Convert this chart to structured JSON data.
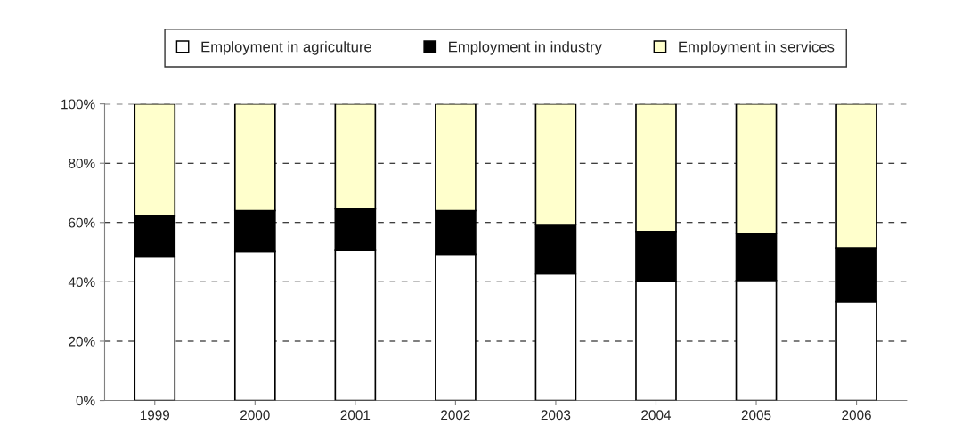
{
  "chart_data": {
    "type": "bar",
    "stacked": true,
    "categories": [
      "1999",
      "2000",
      "2001",
      "2002",
      "2003",
      "2004",
      "2005",
      "2006"
    ],
    "series": [
      {
        "name": "Employment in agriculture",
        "color": "#ffffff",
        "values": [
          48.4,
          50.2,
          50.6,
          49.3,
          42.7,
          40.1,
          40.5,
          33.3
        ]
      },
      {
        "name": "Employment in industry",
        "color": "#000000",
        "values": [
          14.0,
          13.8,
          14.0,
          14.7,
          16.6,
          16.9,
          15.9,
          18.2
        ]
      },
      {
        "name": "Employment in services",
        "color": "#ffffcc",
        "values": [
          37.6,
          36.0,
          35.4,
          36.0,
          40.7,
          43.0,
          43.6,
          48.5
        ]
      }
    ],
    "ylim": [
      0,
      100
    ],
    "yticks": [
      {
        "value": 0,
        "label": "0%"
      },
      {
        "value": 20,
        "label": "20%"
      },
      {
        "value": 40,
        "label": "40%"
      },
      {
        "value": 60,
        "label": "60%"
      },
      {
        "value": 80,
        "label": "80%"
      },
      {
        "value": 100,
        "label": "100%"
      }
    ],
    "grid": "y",
    "legend": "top",
    "line_style": "dashed"
  }
}
